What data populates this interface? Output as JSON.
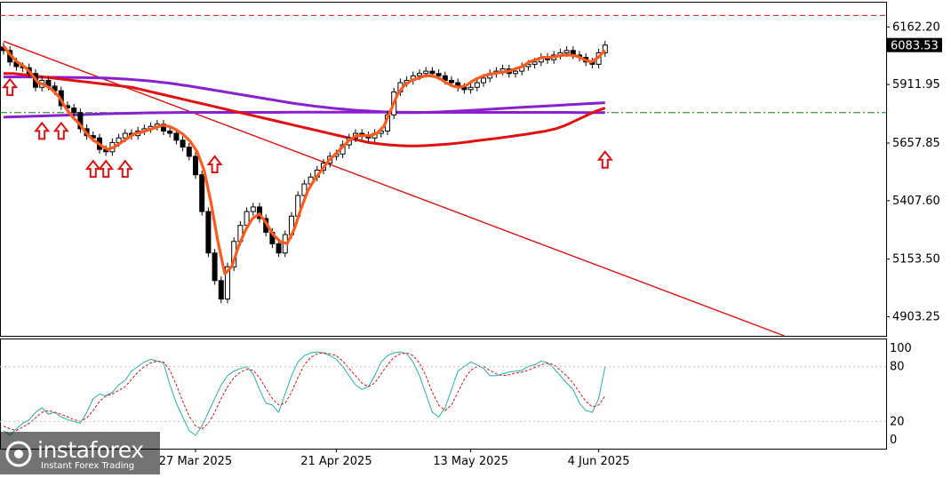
{
  "chart_data": [
    {
      "type": "candlestick",
      "title": "",
      "ylim": [
        4820,
        6260
      ],
      "y_ticks": [
        "6162.20",
        "5911.95",
        "5657.85",
        "5407.60",
        "5153.50",
        "4903.25"
      ],
      "y_tick_values": [
        6162.2,
        5911.95,
        5657.85,
        5407.6,
        5153.5,
        4903.25
      ],
      "x_ticks": [
        "27 Mar 2025",
        "21 Apr 2025",
        "13 May 2025",
        "4 Jun 2025"
      ],
      "x_tick_index": [
        30,
        52,
        73,
        93
      ],
      "current_price": "6083.53",
      "current_price_value": 6083.53,
      "resistance_level": 6212,
      "support_level": 5790,
      "trendline": {
        "from": [
          0,
          6100
        ],
        "to": [
          122,
          4820
        ]
      },
      "grid": false,
      "closes": [
        6060,
        6010,
        5990,
        5985,
        5960,
        5900,
        5930,
        5905,
        5885,
        5820,
        5810,
        5790,
        5720,
        5690,
        5680,
        5630,
        5620,
        5660,
        5680,
        5700,
        5690,
        5710,
        5720,
        5730,
        5740,
        5710,
        5700,
        5670,
        5640,
        5600,
        5520,
        5360,
        5180,
        5060,
        4980,
        5120,
        5230,
        5300,
        5360,
        5380,
        5330,
        5270,
        5220,
        5180,
        5260,
        5340,
        5430,
        5480,
        5510,
        5540,
        5570,
        5600,
        5610,
        5650,
        5680,
        5700,
        5690,
        5680,
        5700,
        5710,
        5780,
        5880,
        5920,
        5930,
        5950,
        5960,
        5970,
        5960,
        5950,
        5930,
        5920,
        5900,
        5890,
        5900,
        5920,
        5940,
        5960,
        5970,
        5980,
        5960,
        5970,
        5990,
        6000,
        6010,
        6030,
        6020,
        6040,
        6050,
        6060,
        6040,
        6030,
        6010,
        6000,
        6050,
        6083.53
      ],
      "ema_fast": [
        6080,
        6040,
        6010,
        5990,
        5960,
        5920,
        5910,
        5890,
        5860,
        5810,
        5770,
        5740,
        5700,
        5670,
        5650,
        5630,
        5640,
        5660,
        5680,
        5700,
        5705,
        5715,
        5725,
        5735,
        5730,
        5715,
        5695,
        5665,
        5620,
        5540,
        5400,
        5230,
        5090,
        5120,
        5210,
        5280,
        5330,
        5350,
        5310,
        5260,
        5230,
        5220,
        5280,
        5370,
        5450,
        5500,
        5540,
        5580,
        5610,
        5640,
        5670,
        5690,
        5690,
        5690,
        5700,
        5730,
        5800,
        5870,
        5910,
        5930,
        5940,
        5950,
        5950,
        5940,
        5920,
        5905,
        5900,
        5910,
        5930,
        5945,
        5955,
        5960,
        5965,
        5970,
        5980,
        5990,
        6010,
        6020,
        6030,
        6030,
        6035,
        6040,
        6040,
        6035,
        6020,
        6010,
        6030,
        6060
      ],
      "ma_red": [
        5960,
        5960,
        5955,
        5950,
        5945,
        5940,
        5935,
        5930,
        5925,
        5920,
        5915,
        5910,
        5905,
        5900,
        5890,
        5880,
        5870,
        5860,
        5850,
        5840,
        5830,
        5820,
        5810,
        5800,
        5790,
        5780,
        5770,
        5760,
        5750,
        5740,
        5730,
        5720,
        5710,
        5700,
        5690,
        5680,
        5670,
        5660,
        5655,
        5650,
        5647,
        5645,
        5645,
        5647,
        5650,
        5653,
        5657,
        5662,
        5668,
        5673,
        5678,
        5684,
        5690,
        5696,
        5703,
        5710,
        5720,
        5735,
        5755,
        5775,
        5795,
        5810
      ],
      "ma_purple_1": [
        5945,
        5945,
        5944,
        5943,
        5942,
        5940,
        5935,
        5928,
        5918,
        5905,
        5890,
        5875,
        5860,
        5845,
        5830,
        5818,
        5808,
        5800,
        5795,
        5790,
        5790,
        5793,
        5797,
        5802,
        5808,
        5813,
        5818,
        5823,
        5828,
        5833
      ],
      "ma_purple_2": [
        5770,
        5773,
        5776,
        5779,
        5782,
        5785,
        5787,
        5789,
        5790,
        5791,
        5791,
        5791,
        5791,
        5791,
        5792,
        5792,
        5792,
        5792,
        5792,
        5792,
        5791,
        5791,
        5791,
        5791,
        5791,
        5791,
        5791,
        5791,
        5790,
        5790
      ],
      "arrow_markers": [
        {
          "i": 1,
          "below": 5935
        },
        {
          "i": 6,
          "below": 5745
        },
        {
          "i": 9,
          "below": 5745
        },
        {
          "i": 14,
          "below": 5580
        },
        {
          "i": 16,
          "below": 5580
        },
        {
          "i": 19,
          "below": 5580
        },
        {
          "i": 33,
          "below": 5600
        },
        {
          "i": 94,
          "below": 5620
        }
      ]
    },
    {
      "type": "line",
      "title": "",
      "ylim": [
        0,
        100
      ],
      "y_ticks": [
        "100",
        "80",
        "20",
        "0"
      ],
      "y_tick_values": [
        100,
        80,
        20,
        0
      ],
      "grid": false,
      "series": [
        {
          "values": [
            10,
            5,
            12,
            18,
            22,
            30,
            35,
            28,
            30,
            25,
            22,
            20,
            18,
            30,
            45,
            50,
            48,
            52,
            60,
            65,
            75,
            80,
            85,
            88,
            86,
            84,
            60,
            40,
            25,
            10,
            5,
            15,
            30,
            45,
            60,
            70,
            75,
            78,
            80,
            72,
            55,
            40,
            38,
            30,
            50,
            70,
            85,
            92,
            95,
            96,
            95,
            92,
            88,
            80,
            70,
            60,
            55,
            58,
            70,
            85,
            92,
            95,
            96,
            94,
            85,
            70,
            50,
            30,
            25,
            35,
            55,
            75,
            80,
            85,
            82,
            78,
            70,
            70,
            72,
            74,
            75,
            76,
            80,
            82,
            86,
            84,
            78,
            70,
            62,
            55,
            40,
            32,
            30,
            45,
            80
          ]
        },
        {
          "values": [
            15,
            12,
            10,
            14,
            18,
            24,
            30,
            32,
            30,
            28,
            25,
            22,
            20,
            24,
            32,
            42,
            48,
            50,
            54,
            58,
            66,
            74,
            80,
            84,
            86,
            85,
            76,
            60,
            42,
            26,
            15,
            12,
            18,
            30,
            45,
            58,
            68,
            74,
            77,
            76,
            68,
            56,
            45,
            38,
            40,
            52,
            68,
            82,
            90,
            94,
            95,
            94,
            92,
            86,
            78,
            70,
            62,
            58,
            62,
            72,
            82,
            90,
            94,
            95,
            92,
            84,
            70,
            52,
            38,
            32,
            38,
            52,
            66,
            76,
            80,
            80,
            76,
            72,
            70,
            71,
            73,
            74,
            76,
            79,
            82,
            84,
            82,
            76,
            70,
            62,
            52,
            42,
            36,
            38,
            48
          ]
        }
      ]
    }
  ],
  "logo": {
    "word": "instaforex",
    "sub": "Instant Forex Trading"
  },
  "colors": {
    "bull": "#ffffff",
    "bear": "#000000",
    "ema": "#ff5a1a",
    "ma_red": "#e01010",
    "ma_purple": "#8a1fd0",
    "trend": "#e01010",
    "stoch_main": "#20b2aa",
    "stoch_signal": "#e01010",
    "support": "#008000",
    "resistance": "#e01010",
    "axis": "#000000",
    "price_box": "#000000"
  }
}
